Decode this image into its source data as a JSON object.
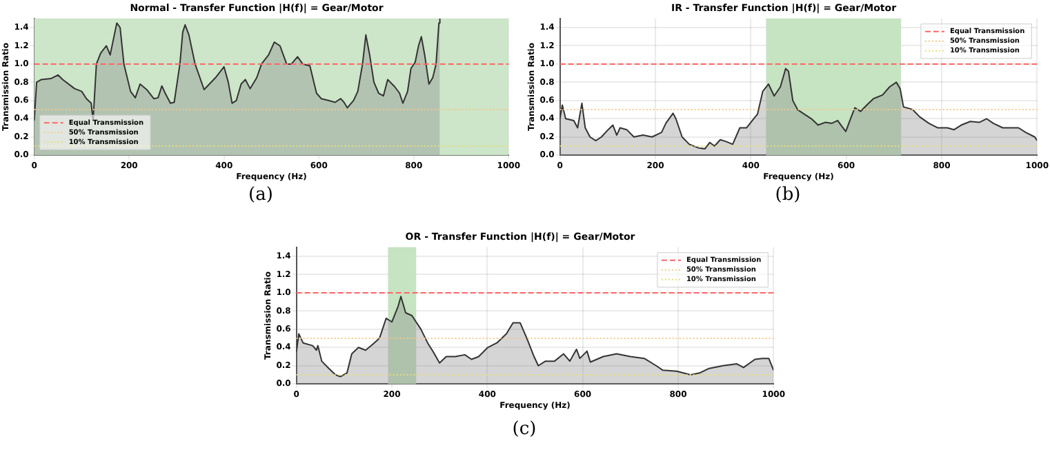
{
  "chart_data": [
    {
      "type": "area",
      "title": "Normal - Transfer Function |H(f)| = Gear/Motor",
      "xlabel": "Frequency (Hz)",
      "ylabel": "Transmission Ratio",
      "annotations": [
        "(a)"
      ],
      "x": [
        0,
        5,
        15,
        35,
        50,
        60,
        85,
        100,
        110,
        120,
        124,
        131,
        140,
        152,
        160,
        174,
        181,
        189,
        203,
        213,
        223,
        237,
        252,
        261,
        269,
        276,
        287,
        295,
        307,
        313,
        318,
        326,
        339,
        358,
        382,
        400,
        409,
        417,
        426,
        436,
        445,
        455,
        469,
        479,
        494,
        506,
        518,
        532,
        542,
        555,
        566,
        581,
        595,
        605,
        620,
        634,
        646,
        653,
        660,
        673,
        682,
        692,
        699,
        707,
        716,
        726,
        736,
        745,
        760,
        770,
        777,
        787,
        794,
        803,
        810,
        816,
        823,
        832,
        840,
        847,
        853,
        855
      ],
      "series": [
        {
          "color": "#333333",
          "values": [
            0.38,
            0.8,
            0.83,
            0.84,
            0.88,
            0.83,
            0.73,
            0.7,
            0.62,
            0.57,
            0.38,
            1.0,
            1.12,
            1.2,
            1.1,
            1.45,
            1.4,
            1.0,
            0.7,
            0.63,
            0.78,
            0.72,
            0.62,
            0.63,
            0.76,
            0.68,
            0.57,
            0.58,
            1.0,
            1.35,
            1.43,
            1.32,
            1.0,
            0.72,
            0.85,
            0.97,
            0.8,
            0.57,
            0.6,
            0.78,
            0.83,
            0.73,
            0.85,
            1.0,
            1.1,
            1.24,
            1.2,
            1.0,
            1.0,
            1.08,
            1.0,
            0.98,
            0.68,
            0.62,
            0.6,
            0.58,
            0.62,
            0.58,
            0.52,
            0.6,
            0.7,
            1.0,
            1.32,
            1.1,
            0.8,
            0.68,
            0.65,
            0.83,
            0.75,
            0.68,
            0.57,
            0.7,
            0.95,
            1.02,
            1.2,
            1.3,
            1.1,
            0.78,
            0.85,
            1.0,
            1.45,
            1.5
          ]
        }
      ],
      "xlim": [
        0,
        1000
      ],
      "xticks": [
        0,
        200,
        400,
        600,
        800,
        1000
      ],
      "ylim": [
        0,
        1.5
      ],
      "yticks": [
        {
          "value": 0,
          "label": "0.0"
        },
        {
          "value": 0.2,
          "label": "0.2"
        },
        {
          "value": 0.4,
          "label": "0.4"
        },
        {
          "value": 0.6,
          "label": "0.6"
        },
        {
          "value": 0.8,
          "label": "0.8"
        },
        {
          "value": 1,
          "label": "1.0"
        },
        {
          "value": 1.2,
          "label": "1.2"
        },
        {
          "value": 1.4,
          "label": "1.4"
        }
      ],
      "bands": [
        {
          "axis": "x",
          "from": 0,
          "to": 1000,
          "color": "#cde5c9"
        }
      ],
      "ref_lines": [
        {
          "axis": "y",
          "value": 1,
          "label": "Equal Transmission",
          "color": "#ff6666",
          "line_style": "dashed"
        },
        {
          "axis": "y",
          "value": 0.5,
          "label": "50% Transmission",
          "color": "#f5c98a",
          "line_style": "dotted"
        },
        {
          "axis": "y",
          "value": 0.1,
          "label": "10% Transmission",
          "color": "#e6df7a",
          "line_style": "dotted"
        }
      ],
      "grid": true,
      "legend": "bottom left"
    },
    {
      "type": "area",
      "title": "IR - Transfer Function |H(f)| = Gear/Motor",
      "xlabel": "Frequency (Hz)",
      "ylabel": "Transmission Ratio",
      "annotations": [
        "(b)"
      ],
      "x": [
        0,
        5,
        12,
        29,
        37,
        46,
        53,
        63,
        75,
        87,
        101,
        111,
        119,
        126,
        140,
        155,
        174,
        193,
        213,
        222,
        237,
        243,
        256,
        271,
        290,
        304,
        314,
        324,
        336,
        348,
        362,
        377,
        391,
        406,
        414,
        425,
        437,
        449,
        462,
        473,
        479,
        488,
        498,
        512,
        527,
        541,
        556,
        570,
        582,
        589,
        599,
        609,
        618,
        630,
        643,
        657,
        676,
        691,
        705,
        713,
        720,
        739,
        754,
        773,
        792,
        812,
        826,
        841,
        860,
        879,
        894,
        908,
        928,
        947,
        961,
        976,
        995,
        1000
      ],
      "series": [
        {
          "color": "#333333",
          "values": [
            0.4,
            0.55,
            0.4,
            0.38,
            0.3,
            0.57,
            0.3,
            0.2,
            0.16,
            0.2,
            0.28,
            0.33,
            0.22,
            0.3,
            0.28,
            0.2,
            0.22,
            0.2,
            0.25,
            0.35,
            0.46,
            0.4,
            0.2,
            0.12,
            0.08,
            0.07,
            0.14,
            0.1,
            0.17,
            0.15,
            0.12,
            0.3,
            0.3,
            0.4,
            0.45,
            0.7,
            0.78,
            0.65,
            0.75,
            0.95,
            0.92,
            0.6,
            0.5,
            0.45,
            0.4,
            0.33,
            0.36,
            0.35,
            0.38,
            0.33,
            0.26,
            0.4,
            0.52,
            0.48,
            0.55,
            0.62,
            0.66,
            0.75,
            0.8,
            0.73,
            0.53,
            0.5,
            0.42,
            0.35,
            0.3,
            0.3,
            0.28,
            0.33,
            0.37,
            0.36,
            0.4,
            0.35,
            0.3,
            0.3,
            0.3,
            0.25,
            0.2,
            0.16
          ]
        }
      ],
      "xlim": [
        0,
        1000
      ],
      "xticks": [
        0,
        200,
        400,
        600,
        800,
        1000
      ],
      "ylim": [
        0,
        1.5
      ],
      "yticks": [
        {
          "value": 0,
          "label": "0.0"
        },
        {
          "value": 0.2,
          "label": "0.2"
        },
        {
          "value": 0.4,
          "label": "0.4"
        },
        {
          "value": 0.6,
          "label": "0.6"
        },
        {
          "value": 0.8,
          "label": "0.8"
        },
        {
          "value": 1,
          "label": "1.0"
        },
        {
          "value": 1.2,
          "label": "1.2"
        },
        {
          "value": 1.4,
          "label": "1.4"
        }
      ],
      "bands": [
        {
          "axis": "x",
          "from": 432,
          "to": 715,
          "color": "#c6e3c2"
        }
      ],
      "ref_lines": [
        {
          "axis": "y",
          "value": 1,
          "label": "Equal Transmission",
          "color": "#ff6666",
          "line_style": "dashed"
        },
        {
          "axis": "y",
          "value": 0.5,
          "label": "50% Transmission",
          "color": "#f5c98a",
          "line_style": "dotted"
        },
        {
          "axis": "y",
          "value": 0.1,
          "label": "10% Transmission",
          "color": "#e6df7a",
          "line_style": "dotted"
        }
      ],
      "grid": true,
      "legend": "top right"
    },
    {
      "type": "area",
      "title": "OR - Transfer Function |H(f)| = Gear/Motor",
      "xlabel": "Frequency (Hz)",
      "ylabel": "Transmission Ratio",
      "annotations": [
        "(c)"
      ],
      "x": [
        0,
        5,
        14,
        34,
        42,
        45,
        53,
        68,
        82,
        92,
        106,
        116,
        130,
        145,
        159,
        174,
        188,
        200,
        213,
        219,
        229,
        242,
        261,
        275,
        287,
        300,
        314,
        333,
        353,
        367,
        382,
        401,
        420,
        440,
        454,
        469,
        483,
        498,
        507,
        522,
        541,
        560,
        573,
        587,
        594,
        609,
        616,
        643,
        671,
        700,
        729,
        754,
        768,
        797,
        826,
        845,
        865,
        894,
        923,
        937,
        961,
        976,
        990,
        1000
      ],
      "series": [
        {
          "color": "#333333",
          "values": [
            0.35,
            0.55,
            0.45,
            0.42,
            0.37,
            0.42,
            0.25,
            0.17,
            0.1,
            0.08,
            0.12,
            0.33,
            0.4,
            0.37,
            0.43,
            0.5,
            0.72,
            0.68,
            0.85,
            0.96,
            0.78,
            0.75,
            0.6,
            0.45,
            0.35,
            0.23,
            0.3,
            0.3,
            0.32,
            0.27,
            0.3,
            0.4,
            0.45,
            0.55,
            0.67,
            0.67,
            0.5,
            0.3,
            0.2,
            0.25,
            0.25,
            0.33,
            0.25,
            0.38,
            0.28,
            0.36,
            0.24,
            0.3,
            0.33,
            0.3,
            0.28,
            0.2,
            0.15,
            0.14,
            0.1,
            0.12,
            0.17,
            0.2,
            0.22,
            0.18,
            0.27,
            0.28,
            0.28,
            0.15
          ]
        }
      ],
      "xlim": [
        0,
        1000
      ],
      "xticks": [
        0,
        200,
        400,
        600,
        800,
        1000
      ],
      "ylim": [
        0,
        1.5
      ],
      "yticks": [
        {
          "value": 0,
          "label": "0.0"
        },
        {
          "value": 0.2,
          "label": "0.2"
        },
        {
          "value": 0.4,
          "label": "0.4"
        },
        {
          "value": 0.6,
          "label": "0.6"
        },
        {
          "value": 0.8,
          "label": "0.8"
        },
        {
          "value": 1,
          "label": "1.0"
        },
        {
          "value": 1.2,
          "label": "1.2"
        },
        {
          "value": 1.4,
          "label": "1.4"
        }
      ],
      "bands": [
        {
          "axis": "x",
          "from": 192,
          "to": 251,
          "color": "#c6e3c2"
        }
      ],
      "ref_lines": [
        {
          "axis": "y",
          "value": 1,
          "label": "Equal Transmission",
          "color": "#ff6666",
          "line_style": "dashed"
        },
        {
          "axis": "y",
          "value": 0.5,
          "label": "50% Transmission",
          "color": "#f5c98a",
          "line_style": "dotted"
        },
        {
          "axis": "y",
          "value": 0.1,
          "label": "10% Transmission",
          "color": "#e6df7a",
          "line_style": "dotted"
        }
      ],
      "grid": true,
      "legend": "top right"
    }
  ]
}
